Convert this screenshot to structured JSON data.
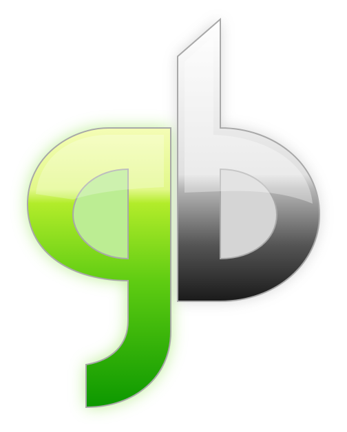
{
  "logo": {
    "letters": "gb",
    "icon": "gb-monogram-logo-icon",
    "colors": {
      "background": "#ffffff",
      "green_light": "#eefc9a",
      "green_mid": "#a8e820",
      "green_dark": "#11a000",
      "gray_light": "#fafafa",
      "gray_mid": "#bdbdbd",
      "gray_dark": "#1e1e1e",
      "outline": "#a8a8a8",
      "glow": "#a6e870"
    }
  }
}
